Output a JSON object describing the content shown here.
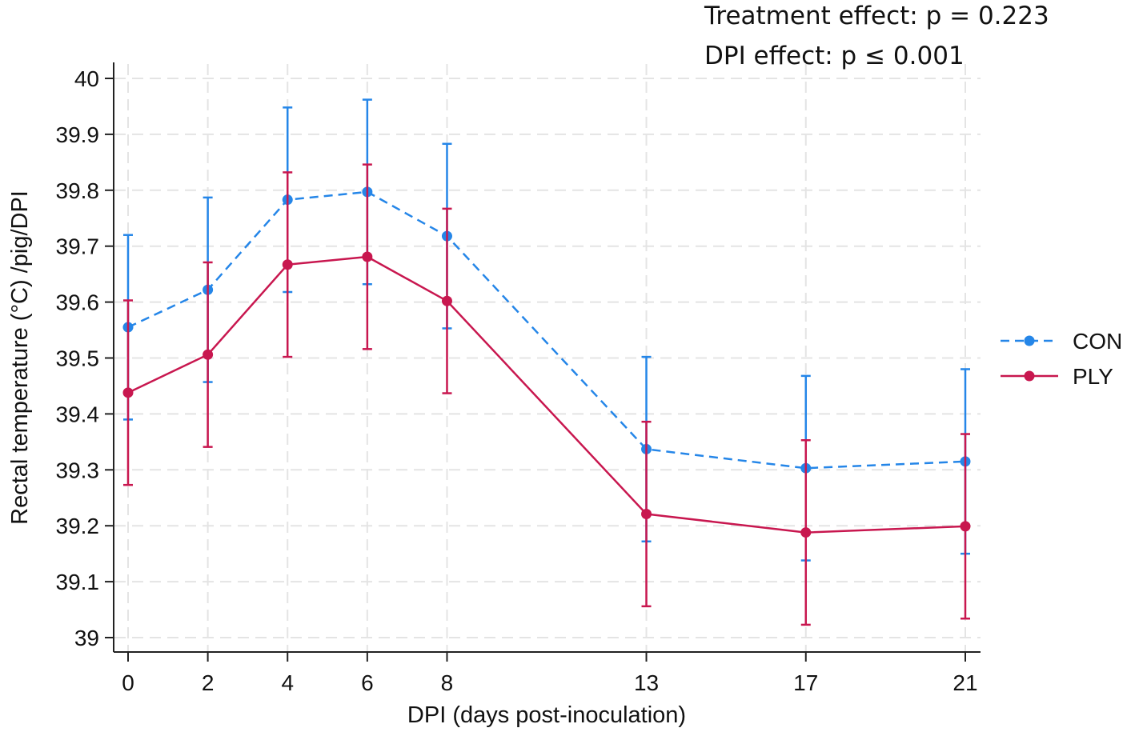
{
  "annotations": {
    "treatment": "Treatment effect: p = 0.223",
    "dpi": "DPI effect: p ≤ 0.001"
  },
  "colors": {
    "con": "#2586e8",
    "ply": "#c8174f",
    "grid": "#e4e4e4",
    "axis": "#222222"
  },
  "chart_data": {
    "type": "line",
    "title": "",
    "xlabel": "DPI (days post-inoculation)",
    "ylabel": "Rectal temperature (°C) /pig/DPI",
    "x": [
      0,
      2,
      4,
      6,
      8,
      13,
      17,
      21
    ],
    "x_tick_labels": [
      "0",
      "2",
      "4",
      "6",
      "8",
      "13",
      "17",
      "21"
    ],
    "xlim": [
      0,
      21
    ],
    "ylim": [
      39,
      40
    ],
    "y_ticks": [
      39,
      39.1,
      39.2,
      39.3,
      39.4,
      39.5,
      39.6,
      39.7,
      39.8,
      39.9,
      40
    ],
    "y_tick_labels": [
      "39",
      "39.1",
      "39.2",
      "39.3",
      "39.4",
      "39.5",
      "39.6",
      "39.7",
      "39.8",
      "39.9",
      "40"
    ],
    "grid": true,
    "legend_position": "right",
    "series": [
      {
        "name": "CON",
        "style": "dashed",
        "values": [
          39.555,
          39.622,
          39.783,
          39.797,
          39.718,
          39.337,
          39.303,
          39.315
        ],
        "lower": [
          39.39,
          39.457,
          39.618,
          39.632,
          39.553,
          39.172,
          39.138,
          39.15
        ],
        "upper": [
          39.72,
          39.787,
          39.948,
          39.962,
          39.883,
          39.502,
          39.468,
          39.48
        ]
      },
      {
        "name": "PLY",
        "style": "solid",
        "values": [
          39.438,
          39.506,
          39.667,
          39.681,
          39.602,
          39.221,
          39.188,
          39.199
        ],
        "lower": [
          39.273,
          39.341,
          39.502,
          39.516,
          39.437,
          39.056,
          39.023,
          39.034
        ],
        "upper": [
          39.603,
          39.671,
          39.832,
          39.846,
          39.767,
          39.386,
          39.353,
          39.364
        ]
      }
    ]
  }
}
